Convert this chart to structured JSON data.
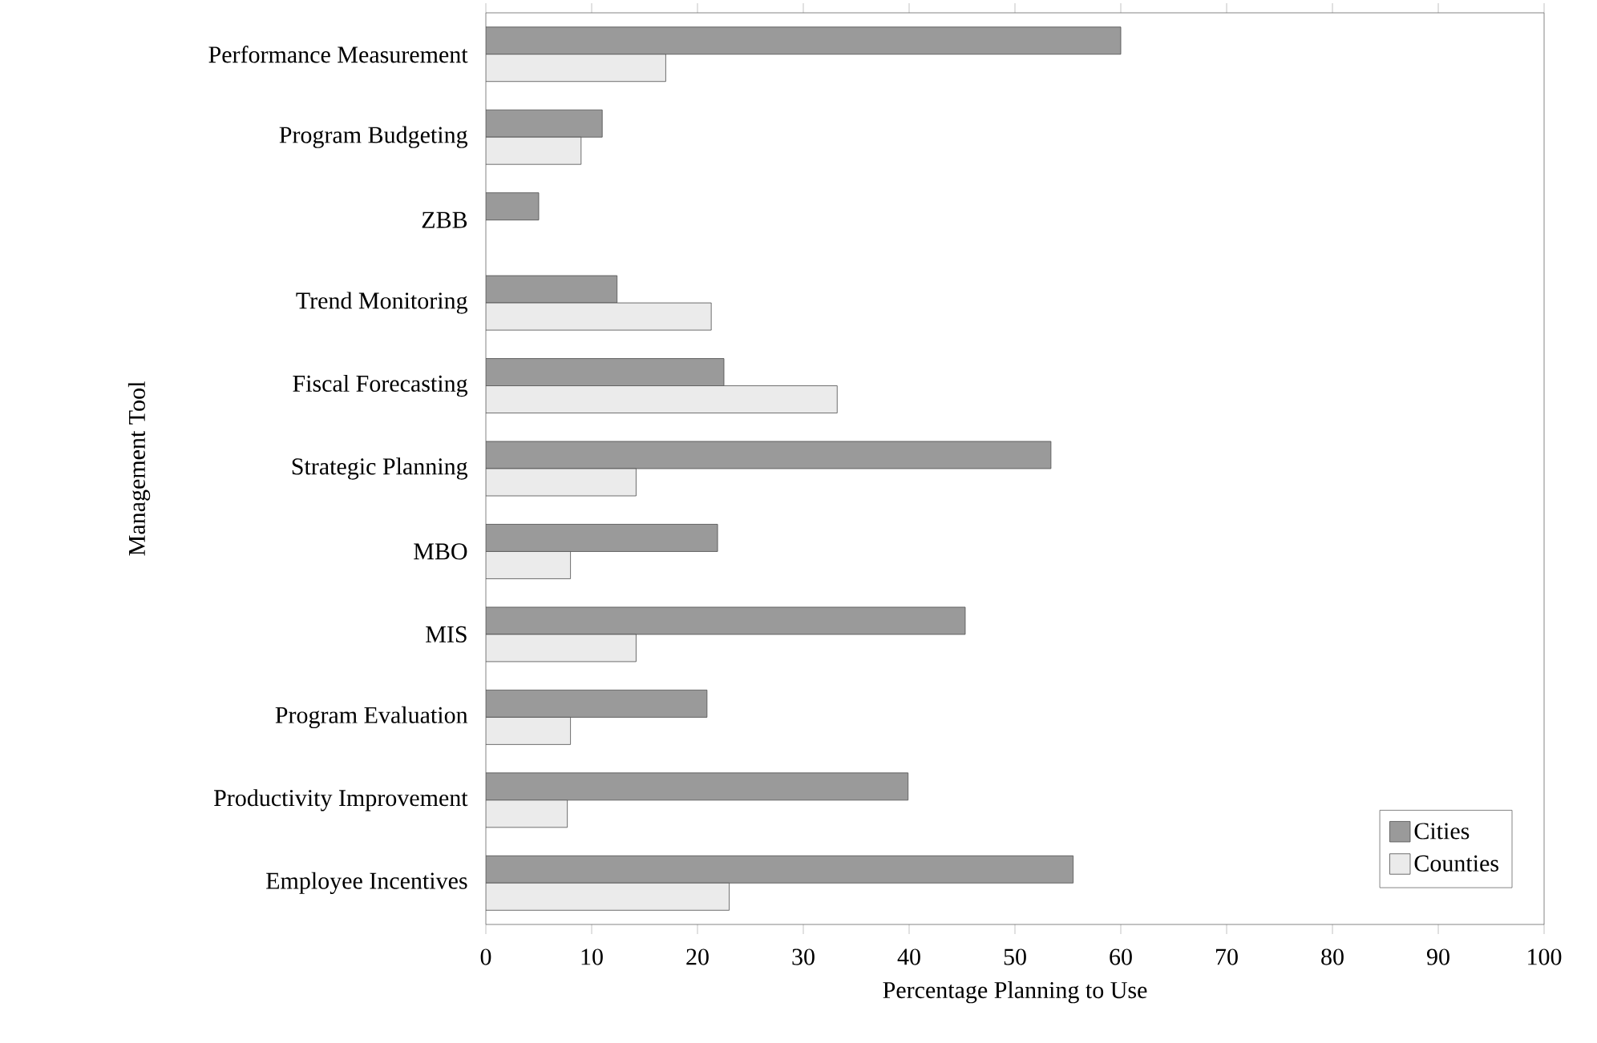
{
  "chart_data": {
    "type": "bar",
    "orientation": "horizontal",
    "xlabel": "Percentage Planning to Use",
    "ylabel": "Management Tool",
    "categories": [
      "Performance Measurement",
      "Program Budgeting",
      "ZBB",
      "Trend Monitoring",
      "Fiscal Forecasting",
      "Strategic Planning",
      "MBO",
      "MIS",
      "Program Evaluation",
      "Productivity Improvement",
      "Employee Incentives"
    ],
    "series": [
      {
        "name": "Cities",
        "color": "#9a9a9a",
        "values": [
          60,
          11,
          5,
          12.4,
          22.5,
          53.4,
          21.9,
          45.3,
          20.9,
          39.9,
          55.5
        ]
      },
      {
        "name": "Counties",
        "color": "#ebebeb",
        "values": [
          17,
          9,
          null,
          21.3,
          33.2,
          14.2,
          8,
          14.2,
          8,
          7.7,
          23
        ]
      }
    ],
    "xlim": [
      0,
      100
    ],
    "xticks": [
      0,
      10,
      20,
      30,
      40,
      50,
      60,
      70,
      80,
      90,
      100
    ],
    "legend": "bottom right"
  }
}
